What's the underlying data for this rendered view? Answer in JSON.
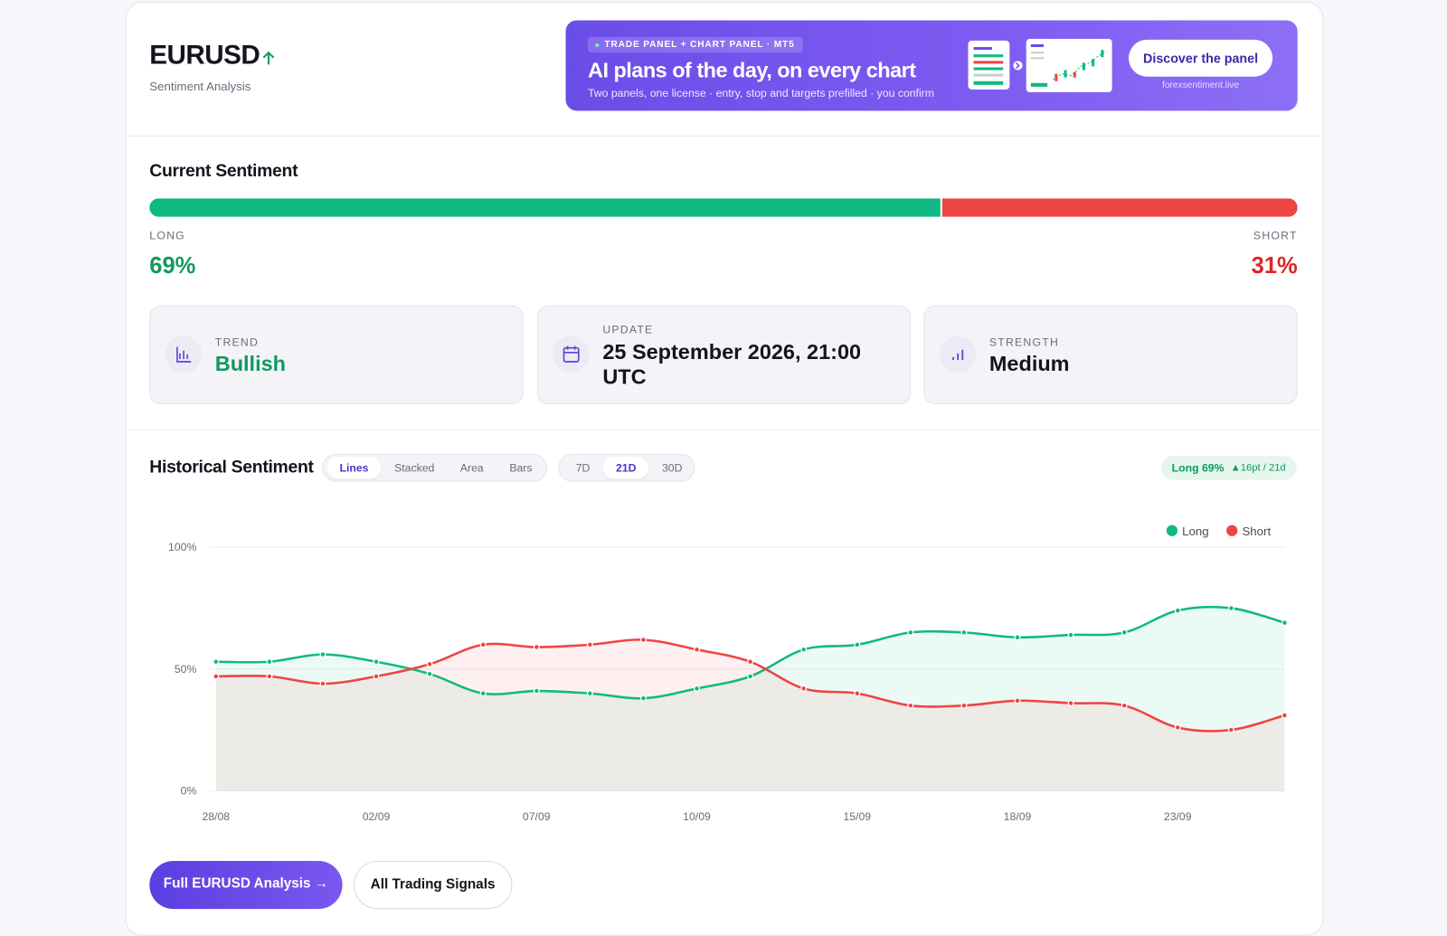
{
  "header": {
    "symbol": "EURUSD",
    "subtitle": "Sentiment Analysis"
  },
  "banner": {
    "tag": "TRADE PANEL + CHART PANEL · MT5",
    "title": "AI plans of the day, on every chart",
    "text": "Two panels, one license · entry, stop and targets prefilled · you confirm",
    "button": "Discover the panel",
    "site": "forexsentiment.live"
  },
  "sentiment": {
    "title": "Current Sentiment",
    "labels": [
      "LONG",
      "SHORT"
    ],
    "values": [
      69,
      31
    ],
    "value_labels": [
      "69%",
      "31%"
    ],
    "colors": [
      "#10b981",
      "#ef4444"
    ]
  },
  "cards": [
    {
      "label": "TREND",
      "value": "Bullish"
    },
    {
      "label": "UPDATE",
      "value": "25 September 2026, 21:00 UTC"
    },
    {
      "label": "STRENGTH",
      "value": "Medium"
    }
  ],
  "history": {
    "title": "Historical Sentiment",
    "views": [
      "Lines",
      "Stacked",
      "Area",
      "Bars"
    ],
    "active_view": 0,
    "ranges": [
      "7D",
      "21D",
      "30D"
    ],
    "active_range": 1,
    "badge": {
      "main": "Long 69%",
      "change": "▲16pt / 21d"
    }
  },
  "chart_data": {
    "type": "line",
    "categories": [
      "28/08",
      null,
      null,
      "02/09",
      null,
      null,
      "07/09",
      null,
      null,
      "10/09",
      null,
      null,
      "15/09",
      null,
      null,
      "18/09",
      null,
      null,
      "23/09",
      null,
      null
    ],
    "series": [
      {
        "name": "Long",
        "color": "#10b981",
        "values": [
          53,
          53,
          56,
          53,
          48,
          40,
          41,
          40,
          38,
          42,
          47,
          58,
          60,
          65,
          65,
          63,
          64,
          65,
          74,
          75,
          69
        ]
      },
      {
        "name": "Short",
        "color": "#ef4444",
        "values": [
          47,
          47,
          44,
          47,
          52,
          60,
          59,
          60,
          62,
          58,
          53,
          42,
          40,
          35,
          35,
          37,
          36,
          35,
          26,
          25,
          31
        ]
      }
    ],
    "ylim": [
      0,
      100
    ],
    "yticks": [
      {
        "value": 0,
        "label": "0%"
      },
      {
        "value": 50,
        "label": "50%"
      },
      {
        "value": 100,
        "label": "100%"
      }
    ],
    "grid": true,
    "legend": "top-right"
  },
  "actions": [
    "Full EURUSD Analysis →",
    "All Trading Signals"
  ]
}
